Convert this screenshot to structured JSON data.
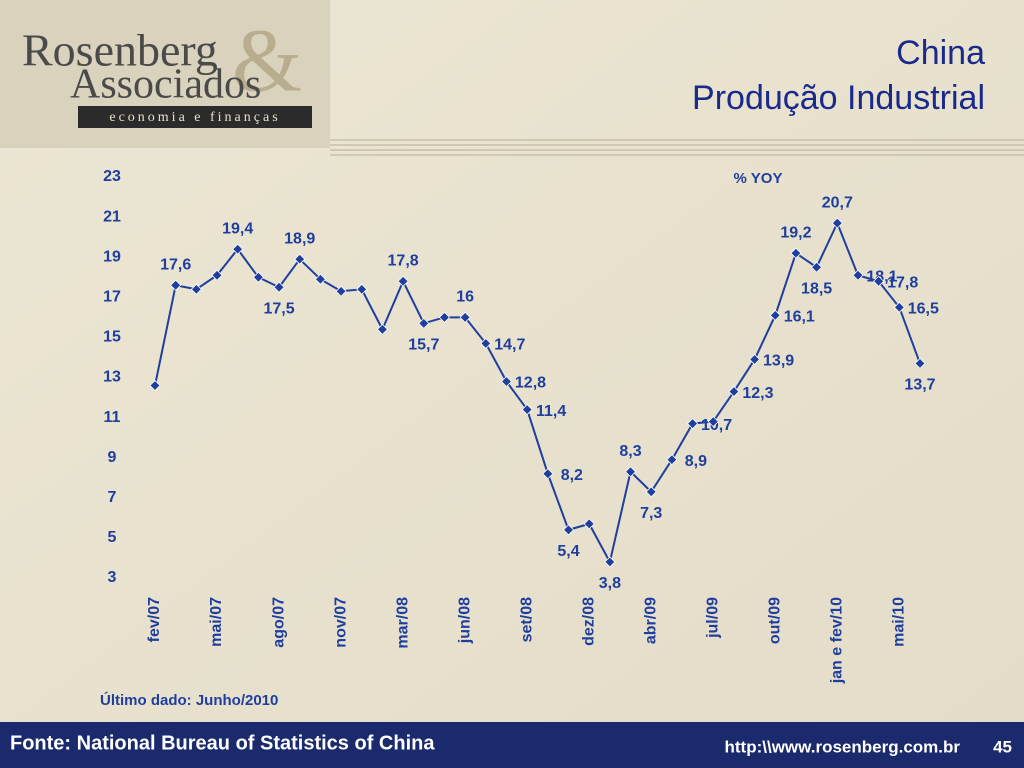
{
  "logo": {
    "name1": "Rosenberg",
    "name2": "Associados",
    "tagline": "economia e finanças"
  },
  "chart_data": {
    "type": "line",
    "title": "China",
    "subtitle": "Produção Industrial",
    "y_label": "% YOY",
    "note": "Último dado: Junho/2010",
    "categories": [
      "fev/07",
      null,
      null,
      "mai/07",
      null,
      null,
      "ago/07",
      null,
      null,
      "nov/07",
      null,
      null,
      "mar/08",
      null,
      null,
      "jun/08",
      null,
      null,
      "set/08",
      null,
      null,
      "dez/08",
      null,
      null,
      "abr/09",
      null,
      null,
      "jul/09",
      null,
      null,
      "out/09",
      null,
      null,
      "jan e fev/10",
      null,
      null,
      "mai/10",
      null
    ],
    "series": [
      {
        "name": "Produção Industrial",
        "color": "#1f3f9f",
        "values": [
          12.6,
          17.6,
          17.4,
          18.1,
          19.4,
          18.0,
          17.5,
          18.9,
          17.9,
          17.3,
          17.4,
          15.4,
          17.8,
          15.7,
          16.0,
          16.0,
          14.7,
          12.8,
          11.4,
          8.2,
          5.4,
          5.7,
          3.8,
          8.3,
          7.3,
          8.9,
          10.7,
          10.8,
          12.3,
          13.9,
          16.1,
          19.2,
          18.5,
          20.7,
          18.1,
          17.8,
          16.5,
          13.7
        ],
        "value_labels": [
          null,
          "17,6",
          null,
          null,
          "19,4",
          null,
          "17,5",
          "18,9",
          null,
          null,
          null,
          null,
          "17,8",
          "15,7",
          null,
          "16",
          "14,7",
          "12,8",
          "11,4",
          "8,2",
          "5,4",
          null,
          "3,8",
          "8,3",
          "7,3",
          "8,9",
          "10,7",
          null,
          "12,3",
          "13,9",
          "16,1",
          "19,2",
          "18,5",
          "20,7",
          "18,1",
          "17,8",
          "16,5",
          "13,7"
        ]
      }
    ],
    "ylim": [
      3,
      23
    ],
    "yticks": [
      3,
      5,
      7,
      9,
      11,
      13,
      15,
      17,
      19,
      21,
      23
    ],
    "grid": false
  },
  "footer": {
    "source": "Fonte: National Bureau of Statistics of China",
    "url": "http:\\\\www.rosenberg.com.br",
    "page": "45"
  }
}
